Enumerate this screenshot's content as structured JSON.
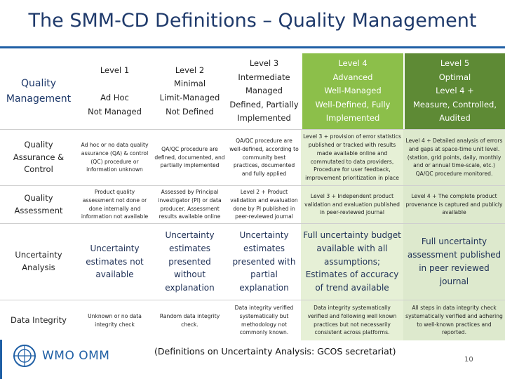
{
  "title": "The SMM-CD Definitions – Quality Management",
  "header": {
    "row_label": "Quality Management",
    "levels": [
      {
        "lines": [
          "Level 1",
          "",
          "Ad Hoc",
          "Not Managed"
        ]
      },
      {
        "lines": [
          "Level 2",
          "Minimal",
          "Limit-Managed",
          "Not Defined"
        ]
      },
      {
        "lines": [
          "Level 3",
          "Intermediate",
          "Managed",
          "Defined, Partially",
          "Implemented"
        ]
      },
      {
        "lines": [
          "Level 4",
          "Advanced",
          "Well-Managed",
          "Well-Defined, Fully",
          "Implemented"
        ]
      },
      {
        "lines": [
          "Level 5",
          "Optimal",
          "Level 4 +",
          "Measure, Controlled,",
          "Audited"
        ]
      }
    ]
  },
  "rows": [
    {
      "label": "Quality Assurance & Control",
      "cells": [
        "Ad hoc or no data quality assurance (QA) & control (QC) procedure or information unknown",
        "QA/QC procedure are defined, documented, and partially implemented",
        "QA/QC procedure are well-defined, according to community best practices, documented and fully applied",
        "Level 3 + provision of error statistics published or tracked with results made available online and commutated to data providers, Procedure for user feedback, improvement prioritization in place",
        "Level 4 + Detailed analysis of errors and gaps at space-time unit level. (station, grid points, daily, monthly and or annual time-scale, etc.) QA/QC procedure monitored."
      ]
    },
    {
      "label": "Quality Assessment",
      "cells": [
        "Product quality assessment not done or done internally and information not available",
        "Assessed by Principal investigator (PI) or data producer, Assessment results available online",
        "Level 2 + Product validation and evaluation done by PI published in peer-reviewed journal",
        "Level 3 + Independent product validation and evaluation published in peer-reviewed journal",
        "Level 4 + The complete product provenance is captured and publicly available"
      ]
    },
    {
      "label": "Uncertainty Analysis",
      "cells": [
        "Uncertainty estimates not available",
        "Uncertainty estimates presented without explanation",
        "Uncertainty estimates presented with partial explanation",
        "Full uncertainty budget available with all assumptions; Estimates of accuracy of trend available",
        "Full uncertainty assessment published in peer reviewed journal"
      ]
    },
    {
      "label": "Data Integrity",
      "cells": [
        "Unknown or no data integrity check",
        "Random data integrity check.",
        "Data integrity verified systematically but methodology not commonly known.",
        "Data integrity systematically verified and following well known practices but not necessarily consistent across platforms.",
        "All steps in data integrity check systematically verified and adhering to well-known practices and reported."
      ]
    }
  ],
  "footer": "(Definitions on Uncertainty Analysis: GCOS secretariat)",
  "page_number": "10",
  "logo_text": "WMO OMM",
  "colors": {
    "title": "#1f3a6b",
    "level4": "#8cbf4a",
    "level5": "#5e8a35",
    "rule": "#1f5fa5"
  }
}
